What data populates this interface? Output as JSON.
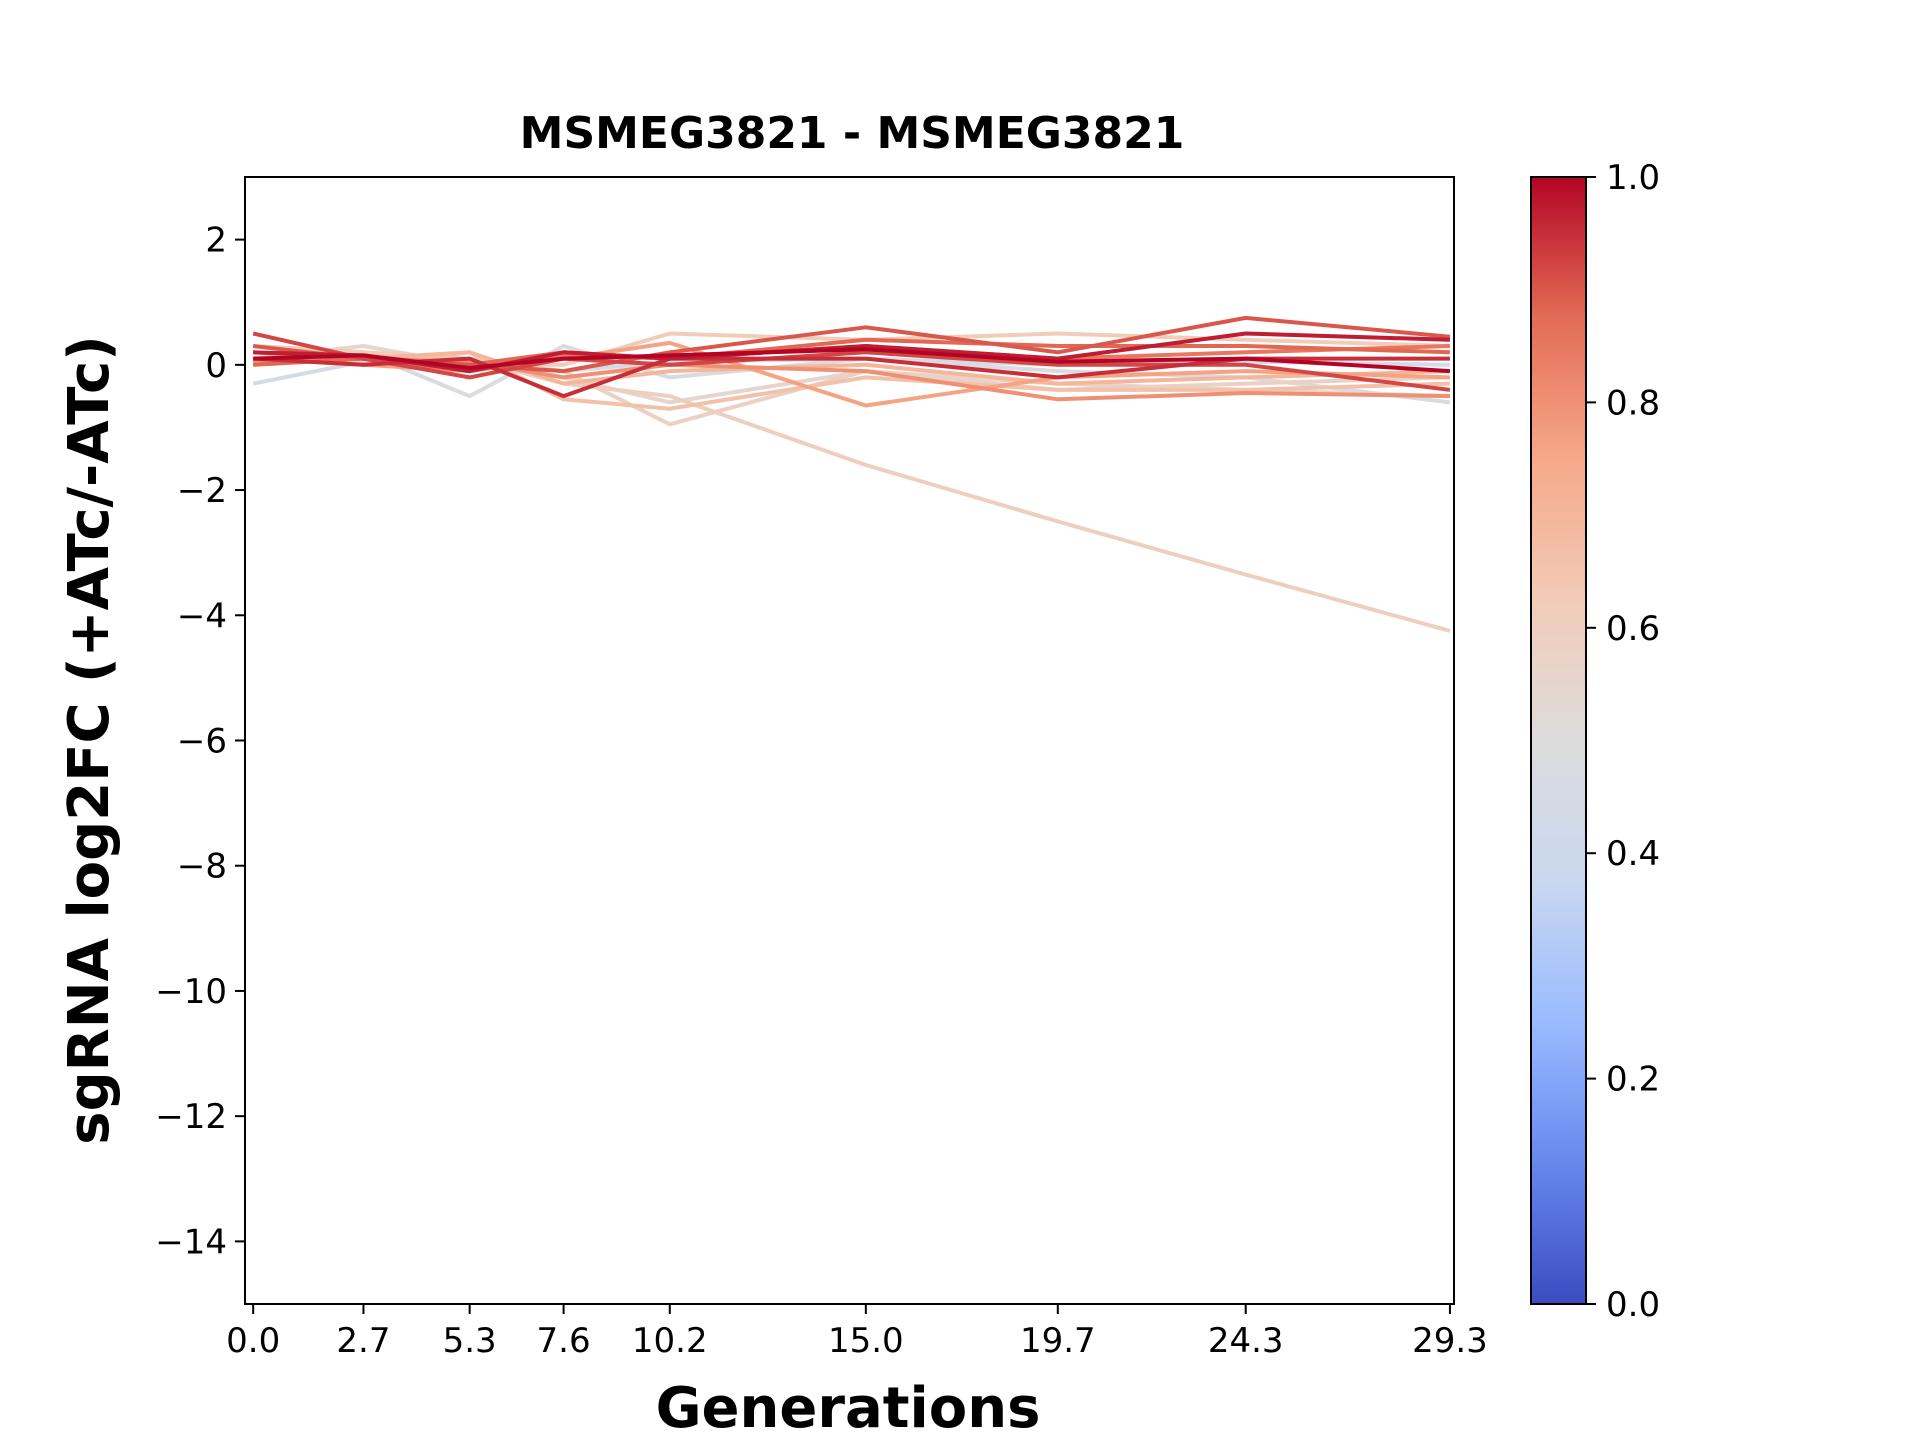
{
  "chart_data": {
    "type": "line",
    "title": "MSMEG3821 - MSMEG3821",
    "xlabel": "Generations",
    "ylabel": "sgRNA log2FC (+ATc/-ATc)",
    "x": [
      0.0,
      2.7,
      5.3,
      7.6,
      10.2,
      15.0,
      19.7,
      24.3,
      29.3
    ],
    "x_tick_labels": [
      "0.0",
      "2.7",
      "5.3",
      "7.6",
      "10.2",
      "15.0",
      "19.7",
      "24.3",
      "29.3"
    ],
    "xlim": [
      -0.2,
      29.4
    ],
    "ylim": [
      -15,
      3
    ],
    "y_ticks": [
      2,
      0,
      -2,
      -4,
      -6,
      -8,
      -10,
      -12,
      -14
    ],
    "y_tick_labels": [
      "2",
      "0",
      "−2",
      "−4",
      "−6",
      "−8",
      "−10",
      "−12",
      "−14"
    ],
    "grid": false,
    "colorbar": {
      "colormap": "coolwarm",
      "range": [
        0.0,
        1.0
      ],
      "ticks": [
        0.0,
        0.2,
        0.4,
        0.6,
        0.8,
        1.0
      ],
      "tick_labels": [
        "0.0",
        "0.2",
        "0.4",
        "0.6",
        "0.8",
        "1.0"
      ],
      "stops": [
        "#3b4cc0",
        "#6788ee",
        "#9abbff",
        "#c9d7f0",
        "#dddcdc",
        "#f2cbb7",
        "#f7a889",
        "#e36c55",
        "#b40426"
      ]
    },
    "series": [
      {
        "values": [
          -0.3,
          0.05,
          0.1,
          -0.1,
          0.05,
          0.1,
          0.0,
          0.05,
          0.0
        ],
        "color_value": 0.45
      },
      {
        "values": [
          0.0,
          0.2,
          -0.5,
          0.3,
          -0.2,
          0.1,
          -0.1,
          -0.2,
          -0.6
        ],
        "color_value": 0.48
      },
      {
        "values": [
          0.1,
          0.3,
          0.0,
          -0.2,
          -0.6,
          -0.1,
          -0.3,
          -0.4,
          -0.5
        ],
        "color_value": 0.55
      },
      {
        "values": [
          0.2,
          0.1,
          0.0,
          -0.1,
          -0.95,
          -0.1,
          -0.4,
          -0.3,
          -0.2
        ],
        "color_value": 0.58
      },
      {
        "values": [
          0.0,
          0.2,
          0.1,
          -0.3,
          -0.5,
          -1.6,
          -2.5,
          -3.35,
          -4.25
        ],
        "color_value": 0.6
      },
      {
        "values": [
          0.3,
          0.2,
          0.0,
          0.0,
          0.5,
          0.4,
          0.5,
          0.4,
          0.3
        ],
        "color_value": 0.62
      },
      {
        "values": [
          0.1,
          0.0,
          0.2,
          -0.55,
          -0.7,
          -0.2,
          -0.4,
          -0.4,
          -0.3
        ],
        "color_value": 0.66
      },
      {
        "values": [
          0.0,
          0.1,
          0.2,
          -0.3,
          -0.1,
          0.0,
          -0.3,
          -0.2,
          -0.1
        ],
        "color_value": 0.7
      },
      {
        "values": [
          0.1,
          0.0,
          -0.1,
          0.1,
          0.35,
          -0.65,
          -0.2,
          -0.1,
          -0.2
        ],
        "color_value": 0.76
      },
      {
        "values": [
          0.05,
          0.1,
          0.05,
          -0.2,
          0.0,
          -0.1,
          -0.55,
          -0.45,
          -0.5
        ],
        "color_value": 0.8
      },
      {
        "values": [
          0.2,
          0.1,
          -0.1,
          0.15,
          0.1,
          0.3,
          0.1,
          0.2,
          0.3
        ],
        "color_value": 0.85
      },
      {
        "values": [
          0.0,
          0.1,
          0.0,
          0.2,
          0.1,
          0.4,
          0.3,
          0.3,
          0.2
        ],
        "color_value": 0.88
      },
      {
        "values": [
          0.3,
          0.1,
          0.0,
          -0.1,
          0.2,
          0.6,
          0.2,
          0.75,
          0.45
        ],
        "color_value": 0.9
      },
      {
        "values": [
          0.5,
          0.1,
          -0.2,
          0.1,
          0.0,
          0.2,
          0.0,
          0.0,
          -0.4
        ],
        "color_value": 0.92
      },
      {
        "values": [
          0.1,
          0.0,
          0.1,
          -0.5,
          0.1,
          0.1,
          -0.2,
          0.1,
          0.1
        ],
        "color_value": 0.95
      },
      {
        "values": [
          0.2,
          0.15,
          -0.1,
          0.2,
          0.1,
          0.3,
          0.1,
          0.5,
          0.4
        ],
        "color_value": 0.97
      },
      {
        "values": [
          0.1,
          0.15,
          -0.05,
          0.1,
          0.15,
          0.25,
          0.05,
          0.1,
          -0.1
        ],
        "color_value": 1.0
      }
    ]
  }
}
